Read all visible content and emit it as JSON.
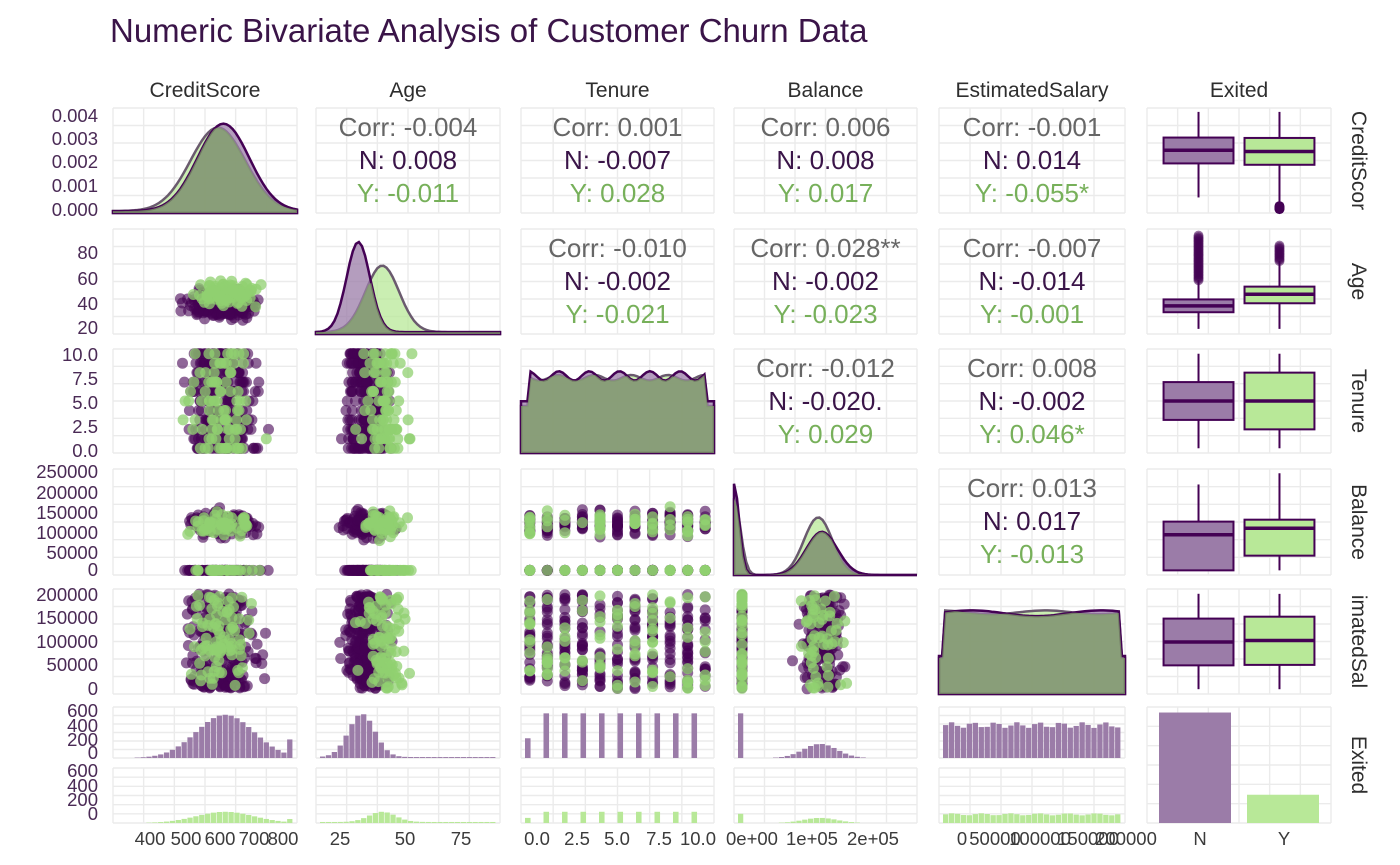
{
  "title": "Numeric Bivariate Analysis of Customer Churn Data",
  "colors": {
    "N": "#440154",
    "Y": "#90d070",
    "N_fill": "#9b7ca8",
    "Y_fill": "#b8e898",
    "overlap": "#7fa068",
    "corr_all": "#666666",
    "corr_N": "#3a1448",
    "corr_Y": "#77b05a",
    "panel_bg": "#ebebeb"
  },
  "chart_data": {
    "type": "scatter",
    "variables": [
      "CreditScore",
      "Age",
      "Tenure",
      "Balance",
      "EstimatedSalary",
      "Exited"
    ],
    "row_strips": [
      "CreditScor",
      "Age",
      "Tenure",
      "Balance",
      "imatedSal",
      "Exited"
    ],
    "legend_groups": [
      "N",
      "Y"
    ],
    "y_ticks": {
      "CreditScore": [
        "0.004",
        "0.003",
        "0.002",
        "0.001",
        "0.000"
      ],
      "Age": [
        "80",
        "60",
        "40",
        "20"
      ],
      "Tenure": [
        "10.0",
        "7.5",
        "5.0",
        "2.5",
        "0.0"
      ],
      "Balance": [
        "250000",
        "200000",
        "150000",
        "100000",
        "50000",
        "0"
      ],
      "EstimatedSalary": [
        "200000",
        "150000",
        "100000",
        "50000",
        "0"
      ],
      "Exited_N": [
        "600",
        "400",
        "200",
        "0"
      ],
      "Exited_Y": [
        "600",
        "400",
        "200",
        "0"
      ]
    },
    "x_ticks": {
      "CreditScore": [
        "400",
        "500",
        "600",
        "700",
        "800"
      ],
      "Age": [
        "25",
        "50",
        "75"
      ],
      "Tenure": [
        "0.0",
        "2.5",
        "5.0",
        "7.5",
        "10.0"
      ],
      "Balance": [
        "0e+00",
        "1e+05",
        "2e+05"
      ],
      "EstimatedSalary": [
        "0",
        "50000",
        "100000",
        "150000",
        "200000"
      ],
      "Exited": [
        "N",
        "Y"
      ]
    },
    "correlations": [
      {
        "pair": [
          "CreditScore",
          "Age"
        ],
        "corr": "Corr: -0.004",
        "N": "N: 0.008",
        "Y": "Y: -0.011"
      },
      {
        "pair": [
          "CreditScore",
          "Tenure"
        ],
        "corr": "Corr: 0.001",
        "N": "N: -0.007",
        "Y": "Y: 0.028"
      },
      {
        "pair": [
          "CreditScore",
          "Balance"
        ],
        "corr": "Corr: 0.006",
        "N": "N: 0.008",
        "Y": "Y: 0.017"
      },
      {
        "pair": [
          "CreditScore",
          "EstimatedSalary"
        ],
        "corr": "Corr: -0.001",
        "N": "N: 0.014",
        "Y": "Y: -0.055*"
      },
      {
        "pair": [
          "Age",
          "Tenure"
        ],
        "corr": "Corr: -0.010",
        "N": "N: -0.002",
        "Y": "Y: -0.021"
      },
      {
        "pair": [
          "Age",
          "Balance"
        ],
        "corr": "Corr: 0.028**",
        "N": "N: -0.002",
        "Y": "Y: -0.023"
      },
      {
        "pair": [
          "Age",
          "EstimatedSalary"
        ],
        "corr": "Corr: -0.007",
        "N": "N: -0.014",
        "Y": "Y: -0.001"
      },
      {
        "pair": [
          "Tenure",
          "Balance"
        ],
        "corr": "Corr: -0.012",
        "N": "N: -0.020.",
        "Y": "Y: 0.029"
      },
      {
        "pair": [
          "Tenure",
          "EstimatedSalary"
        ],
        "corr": "Corr: 0.008",
        "N": "N: -0.002",
        "Y": "Y: 0.046*"
      },
      {
        "pair": [
          "Balance",
          "EstimatedSalary"
        ],
        "corr": "Corr: 0.013",
        "N": "N: 0.017",
        "Y": "Y: -0.013"
      }
    ],
    "boxplots": {
      "CreditScore": {
        "N": {
          "min": 410,
          "q1": 585,
          "median": 653,
          "q3": 718,
          "max": 850
        },
        "Y": {
          "min": 350,
          "q1": 578,
          "median": 646,
          "q3": 716,
          "max": 850
        },
        "Y_low_outliers": [
          350,
          355,
          360,
          365
        ]
      },
      "Age": {
        "N": {
          "min": 18,
          "q1": 31,
          "median": 36,
          "q3": 41,
          "max": 56
        },
        "Y": {
          "min": 18,
          "q1": 38,
          "median": 45,
          "q3": 51,
          "max": 71
        }
      },
      "Tenure": {
        "N": {
          "min": 0,
          "q1": 3,
          "median": 5,
          "q3": 7,
          "max": 10
        },
        "Y": {
          "min": 0,
          "q1": 2,
          "median": 5,
          "q3": 8,
          "max": 10
        }
      },
      "Balance": {
        "N": {
          "min": 0,
          "q1": 0,
          "median": 92000,
          "q3": 126000,
          "max": 222000
        },
        "Y": {
          "min": 0,
          "q1": 38000,
          "median": 109000,
          "q3": 131000,
          "max": 251000
        }
      },
      "EstimatedSalary": {
        "N": {
          "min": 90,
          "q1": 50000,
          "median": 99000,
          "q3": 148000,
          "max": 199990
        },
        "Y": {
          "min": 12,
          "q1": 51000,
          "median": 102000,
          "q3": 152000,
          "max": 199800
        }
      }
    },
    "exited_counts": {
      "N": 7963,
      "Y": 2037
    },
    "age_density": {
      "x": [
        18,
        20,
        25,
        30,
        33,
        35,
        38,
        40,
        45,
        50,
        55,
        60,
        65,
        70,
        80,
        92
      ],
      "N": [
        0.002,
        0.008,
        0.03,
        0.055,
        0.065,
        0.068,
        0.06,
        0.05,
        0.03,
        0.015,
        0.008,
        0.005,
        0.003,
        0.002,
        0.001,
        0.0
      ],
      "Y": [
        0.0,
        0.002,
        0.008,
        0.018,
        0.026,
        0.032,
        0.04,
        0.044,
        0.046,
        0.04,
        0.028,
        0.016,
        0.008,
        0.004,
        0.001,
        0.0
      ]
    },
    "credit_density": {
      "x": [
        350,
        400,
        450,
        500,
        550,
        600,
        650,
        700,
        750,
        800,
        850
      ],
      "N": [
        0.0001,
        0.0002,
        0.0004,
        0.001,
        0.0021,
        0.0031,
        0.0039,
        0.0037,
        0.0027,
        0.0016,
        0.0009
      ],
      "Y": [
        0.0002,
        0.0003,
        0.0005,
        0.0011,
        0.0022,
        0.0032,
        0.0038,
        0.0036,
        0.0026,
        0.0016,
        0.0009
      ]
    }
  }
}
